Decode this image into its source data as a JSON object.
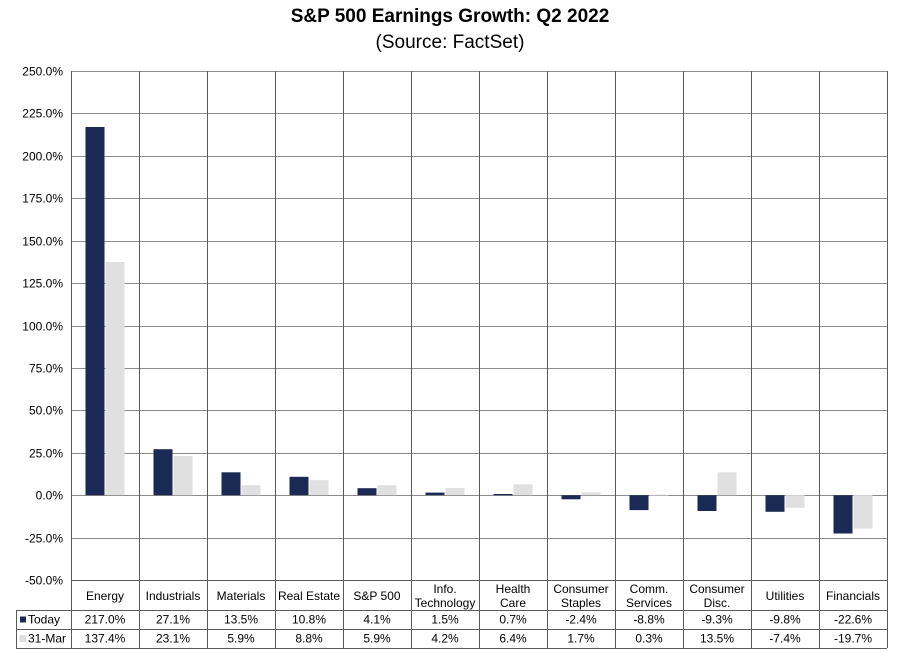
{
  "chart_data": {
    "type": "bar",
    "title": "S&P 500 Earnings Growth: Q2 2022",
    "subtitle": "(Source: FactSet)",
    "categories": [
      [
        "Energy"
      ],
      [
        "Industrials"
      ],
      [
        "Materials"
      ],
      [
        "Real Estate"
      ],
      [
        "S&P 500"
      ],
      [
        "Info.",
        "Technology"
      ],
      [
        "Health",
        "Care"
      ],
      [
        "Consumer",
        "Staples"
      ],
      [
        "Comm.",
        "Services"
      ],
      [
        "Consumer",
        "Disc."
      ],
      [
        "Utilities"
      ],
      [
        "Financials"
      ]
    ],
    "series": [
      {
        "name": "Today",
        "color": "#1b2a55",
        "values": [
          217.0,
          27.1,
          13.5,
          10.8,
          4.1,
          1.5,
          0.7,
          -2.4,
          -8.8,
          -9.3,
          -9.8,
          -22.6
        ],
        "labels": [
          "217.0%",
          "27.1%",
          "13.5%",
          "10.8%",
          "4.1%",
          "1.5%",
          "0.7%",
          "-2.4%",
          "-8.8%",
          "-9.3%",
          "-9.8%",
          "-22.6%"
        ]
      },
      {
        "name": "31-Mar",
        "color": "#e0e0e0",
        "values": [
          137.4,
          23.1,
          5.9,
          8.8,
          5.9,
          4.2,
          6.4,
          1.7,
          0.3,
          13.5,
          -7.4,
          -19.7
        ],
        "labels": [
          "137.4%",
          "23.1%",
          "5.9%",
          "8.8%",
          "5.9%",
          "4.2%",
          "6.4%",
          "1.7%",
          "0.3%",
          "13.5%",
          "-7.4%",
          "-19.7%"
        ]
      }
    ],
    "ylim": [
      -50,
      250
    ],
    "ytick_values": [
      -50,
      -25,
      0,
      25,
      50,
      75,
      100,
      125,
      150,
      175,
      200,
      225,
      250
    ],
    "ytick_labels": [
      "-50.0%",
      "-25.0%",
      "0.0%",
      "25.0%",
      "50.0%",
      "75.0%",
      "100.0%",
      "125.0%",
      "150.0%",
      "175.0%",
      "200.0%",
      "225.0%",
      "250.0%"
    ],
    "grid": true,
    "legend": "data-table"
  }
}
